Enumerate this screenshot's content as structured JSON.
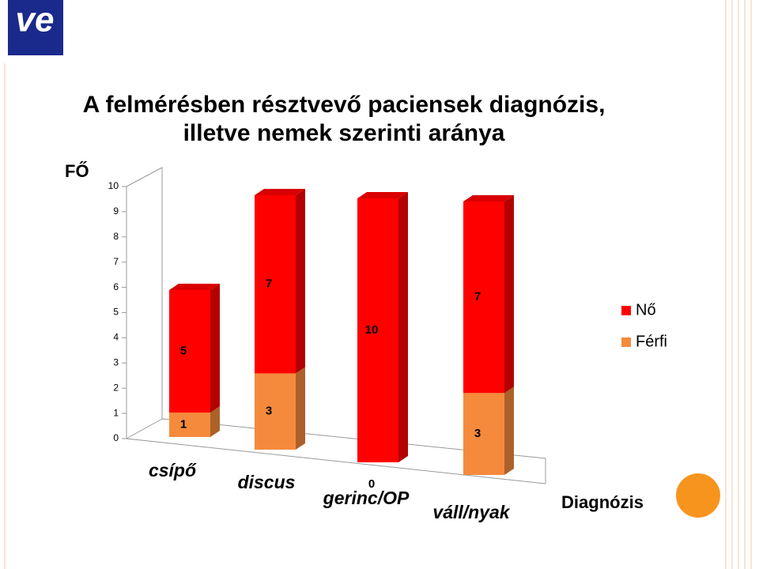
{
  "logo": "ve",
  "chart_data": {
    "type": "bar3d_stacked",
    "title": [
      "A felmérésben résztvevő paciensek diagnózis,",
      "illetve nemek szerinti aránya"
    ],
    "y_label": "FŐ",
    "x_label": "Diagnózis",
    "categories": [
      "csípő",
      "discus",
      "gerinc/OP",
      "váll/nyak"
    ],
    "series": [
      {
        "name": "Férfi",
        "color": "#f58a3c",
        "values": [
          1,
          3,
          0,
          3
        ]
      },
      {
        "name": "Nő",
        "color": "#ff0000",
        "values": [
          5,
          7,
          10,
          7
        ]
      }
    ],
    "ylim": [
      0,
      10
    ],
    "yticks": [
      0,
      1,
      2,
      3,
      4,
      5,
      6,
      7,
      8,
      9,
      10
    ],
    "legend": "right"
  }
}
